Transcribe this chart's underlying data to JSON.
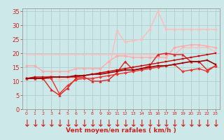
{
  "xlabel": "Vent moyen/en rafales ( km/h )",
  "background_color": "#cce8e8",
  "grid_color": "#aacccc",
  "xlim": [
    -0.5,
    23.5
  ],
  "ylim": [
    0,
    36
  ],
  "yticks": [
    0,
    5,
    10,
    15,
    20,
    25,
    30,
    35
  ],
  "xticks": [
    0,
    1,
    2,
    3,
    4,
    5,
    6,
    7,
    8,
    9,
    10,
    11,
    12,
    13,
    14,
    15,
    16,
    17,
    18,
    19,
    20,
    21,
    22,
    23
  ],
  "series": [
    {
      "x": [
        0,
        1,
        2,
        3,
        4,
        5,
        6,
        7,
        8,
        9,
        10,
        11,
        12,
        13,
        14,
        15,
        16,
        17,
        18,
        19,
        20,
        21,
        22,
        23
      ],
      "y": [
        19.5,
        19.5,
        19.5,
        19.5,
        19.5,
        19.5,
        19.5,
        19.5,
        19.5,
        19.5,
        19.5,
        19.5,
        19.5,
        19.5,
        19.5,
        19.5,
        19.5,
        19.5,
        19.5,
        22.0,
        22.0,
        22.0,
        22.0,
        20.5
      ],
      "color": "#ffbbbb",
      "linewidth": 1.0,
      "marker": "s",
      "markersize": 2.0
    },
    {
      "x": [
        0,
        1,
        2,
        3,
        4,
        5,
        6,
        7,
        8,
        9,
        10,
        11,
        12,
        13,
        14,
        15,
        16,
        17,
        18,
        19,
        20,
        21,
        22,
        23
      ],
      "y": [
        15.5,
        15.5,
        13.5,
        13.5,
        13.5,
        13.5,
        14.5,
        14.5,
        14.5,
        14.5,
        17.0,
        19.0,
        19.0,
        18.5,
        18.5,
        18.5,
        18.5,
        18.5,
        22.0,
        22.5,
        23.0,
        23.0,
        22.5,
        22.0
      ],
      "color": "#ffaaaa",
      "linewidth": 1.0,
      "marker": "D",
      "markersize": 2.0
    },
    {
      "x": [
        0,
        1,
        2,
        3,
        4,
        5,
        6,
        7,
        8,
        9,
        10,
        11,
        12,
        13,
        14,
        15,
        16,
        17,
        18,
        19,
        20,
        21,
        22,
        23
      ],
      "y": [
        11.0,
        11.0,
        11.0,
        12.0,
        10.5,
        11.0,
        11.5,
        12.0,
        12.5,
        13.0,
        13.5,
        28.0,
        24.0,
        24.5,
        25.0,
        28.5,
        35.0,
        28.5,
        28.5,
        28.5,
        28.5,
        28.5,
        28.5,
        28.5
      ],
      "color": "#ffbbbb",
      "linewidth": 1.0,
      "marker": "D",
      "markersize": 2.0
    },
    {
      "x": [
        0,
        1,
        2,
        3,
        4,
        5,
        6,
        7,
        8,
        9,
        10,
        11,
        12,
        13,
        14,
        15,
        16,
        17,
        18,
        19,
        20,
        21,
        22,
        23
      ],
      "y": [
        11.0,
        11.0,
        11.0,
        7.0,
        5.0,
        7.5,
        11.0,
        11.5,
        10.0,
        10.0,
        10.5,
        13.0,
        17.0,
        14.0,
        14.5,
        15.5,
        19.5,
        20.0,
        19.5,
        19.5,
        17.0,
        17.0,
        14.0,
        15.5
      ],
      "color": "#dd2222",
      "linewidth": 1.0,
      "marker": "^",
      "markersize": 2.5
    },
    {
      "x": [
        0,
        1,
        2,
        3,
        4,
        5,
        6,
        7,
        8,
        9,
        10,
        11,
        12,
        13,
        14,
        15,
        16,
        17,
        18,
        19,
        20,
        21,
        22,
        23
      ],
      "y": [
        11.0,
        11.5,
        11.5,
        11.5,
        11.5,
        11.5,
        11.5,
        12.0,
        12.5,
        13.0,
        13.5,
        14.0,
        14.5,
        15.0,
        15.5,
        16.0,
        16.5,
        17.0,
        17.5,
        18.0,
        18.5,
        19.0,
        19.5,
        20.0
      ],
      "color": "#cc0000",
      "linewidth": 1.0,
      "marker": "s",
      "markersize": 2.0
    },
    {
      "x": [
        0,
        1,
        2,
        3,
        4,
        5,
        6,
        7,
        8,
        9,
        10,
        11,
        12,
        13,
        14,
        15,
        16,
        17,
        18,
        19,
        20,
        21,
        22,
        23
      ],
      "y": [
        11.0,
        11.0,
        11.0,
        11.0,
        5.5,
        8.5,
        10.5,
        11.0,
        11.0,
        11.5,
        12.0,
        12.5,
        13.0,
        13.5,
        14.0,
        14.5,
        15.0,
        15.5,
        16.0,
        13.5,
        14.0,
        14.5,
        13.5,
        15.5
      ],
      "color": "#ee3333",
      "linewidth": 1.0,
      "marker": "D",
      "markersize": 2.0
    },
    {
      "x": [
        0,
        1,
        2,
        3,
        4,
        5,
        6,
        7,
        8,
        9,
        10,
        11,
        12,
        13,
        14,
        15,
        16,
        17,
        18,
        19,
        20,
        21,
        22,
        23
      ],
      "y": [
        11.0,
        11.0,
        11.0,
        11.5,
        11.5,
        11.5,
        12.0,
        12.0,
        12.5,
        12.5,
        13.0,
        13.5,
        14.0,
        14.0,
        14.5,
        15.0,
        15.5,
        15.5,
        16.0,
        16.5,
        17.0,
        17.0,
        17.5,
        16.0
      ],
      "color": "#990000",
      "linewidth": 1.2,
      "marker": "s",
      "markersize": 2.0
    }
  ],
  "tick_color": "#cc2222",
  "label_color": "#cc2222",
  "xlabel_fontsize": 6.5,
  "ytick_fontsize": 6,
  "xtick_fontsize": 4.5
}
